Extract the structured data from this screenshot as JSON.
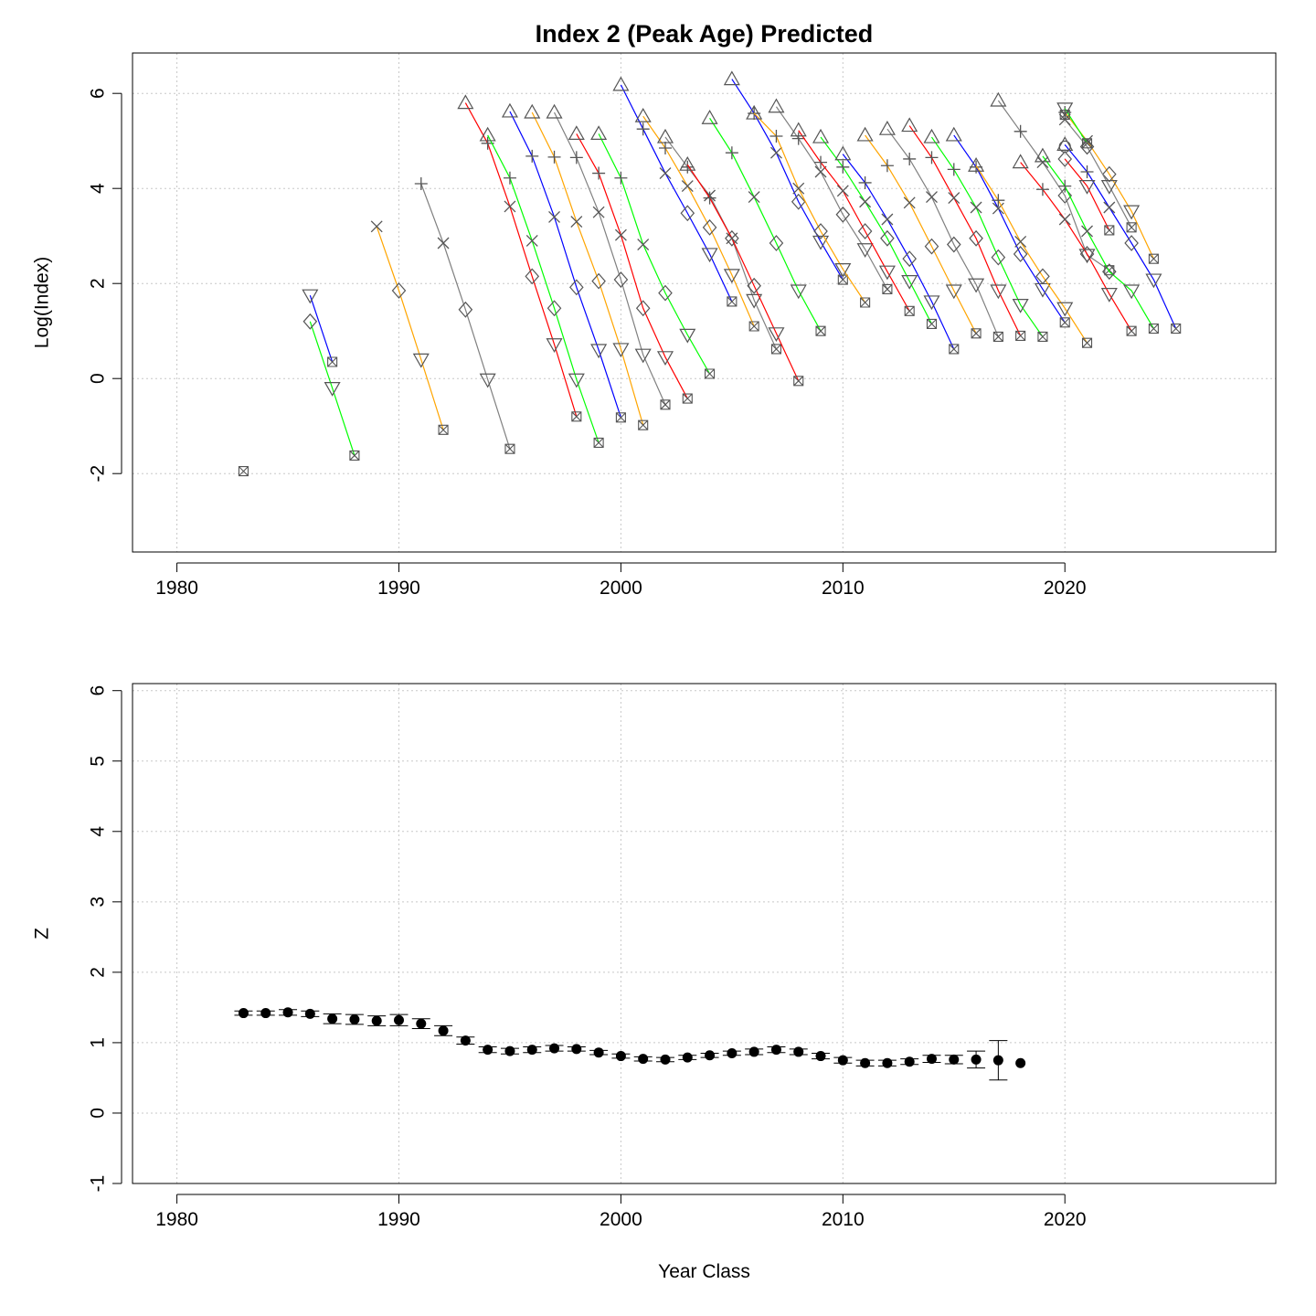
{
  "chart_data": [
    {
      "type": "line",
      "title": "Index 2 (Peak Age) Predicted",
      "xlabel": "",
      "ylabel": "Log(Index)",
      "xlim": [
        1978,
        2029.5
      ],
      "ylim": [
        -3.65,
        6.85
      ],
      "xticks": [
        1980,
        1990,
        2000,
        2010,
        2020
      ],
      "yticks": [
        -2,
        0,
        2,
        4,
        6
      ],
      "ytick_labels": [
        "-2",
        "0",
        "2",
        "4",
        "6"
      ],
      "grid": true,
      "line_colors": [
        "#ff0000",
        "#00ff00",
        "#0000ff",
        "#ffa500",
        "#808080"
      ],
      "age_symbols": [
        "triangle-up",
        "plus",
        "x",
        "diamond",
        "triangle-down",
        "square-x"
      ],
      "start_year": 1988,
      "cohorts": [
        {
          "values": [
            -1.95
          ]
        },
        {
          "values": [
            1.2,
            -0.2,
            -1.62
          ]
        },
        {
          "values": [
            1.75,
            0.35
          ]
        },
        {
          "values": [
            3.2,
            1.85,
            0.4,
            -1.08
          ]
        },
        {
          "values": [
            4.1,
            2.85,
            1.45,
            -0.02,
            -1.48
          ]
        },
        {
          "values": [
            5.8,
            4.95,
            3.62,
            2.15,
            0.72,
            -0.8
          ]
        },
        {
          "values": [
            5.12,
            4.22,
            2.9,
            1.48,
            -0.02,
            -1.35
          ]
        },
        {
          "values": [
            5.62,
            4.68,
            3.4,
            1.92,
            0.6,
            -0.82
          ]
        },
        {
          "values": [
            5.6,
            4.66,
            3.3,
            2.05,
            0.62,
            -0.98
          ]
        },
        {
          "values": [
            5.6,
            4.65,
            3.5,
            2.08,
            0.5,
            -0.55
          ]
        },
        {
          "values": [
            5.15,
            4.32,
            3.02,
            1.48,
            0.45,
            -0.42
          ]
        },
        {
          "values": [
            5.15,
            4.22,
            2.82,
            1.8,
            0.92,
            0.1
          ]
        },
        {
          "values": [
            6.18,
            5.25,
            4.32,
            3.48,
            2.62,
            1.62
          ]
        },
        {
          "values": [
            5.52,
            4.85,
            4.05,
            3.18,
            2.18,
            1.1
          ]
        },
        {
          "values": [
            5.08,
            4.45,
            3.85,
            2.95,
            1.65,
            0.62
          ]
        },
        {
          "values": [
            4.5,
            3.8,
            2.95,
            1.95,
            0.95,
            -0.05
          ]
        },
        {
          "values": [
            5.48,
            4.75,
            3.82,
            2.85,
            1.85,
            1.0
          ]
        },
        {
          "values": [
            6.3,
            5.58,
            4.75,
            3.72,
            2.88,
            2.08
          ]
        },
        {
          "values": [
            5.58,
            5.1,
            4.0,
            3.1,
            2.3,
            1.6
          ]
        },
        {
          "values": [
            5.72,
            5.05,
            4.35,
            3.45,
            2.72,
            1.88
          ]
        },
        {
          "values": [
            5.22,
            4.55,
            3.95,
            3.1,
            2.25,
            1.42
          ]
        },
        {
          "values": [
            5.08,
            4.45,
            3.72,
            2.95,
            2.05,
            1.15
          ]
        },
        {
          "values": [
            4.72,
            4.12,
            3.35,
            2.52,
            1.62,
            0.62
          ]
        },
        {
          "values": [
            5.12,
            4.48,
            3.7,
            2.78,
            1.85,
            0.95
          ]
        },
        {
          "values": [
            5.25,
            4.62,
            3.82,
            2.82,
            1.98,
            0.88
          ]
        },
        {
          "values": [
            5.32,
            4.65,
            3.8,
            2.95,
            1.85,
            0.9
          ]
        },
        {
          "values": [
            5.08,
            4.4,
            3.6,
            2.55,
            1.55,
            0.88
          ]
        },
        {
          "values": [
            5.12,
            4.45,
            3.58,
            2.62,
            1.88,
            1.18
          ]
        },
        {
          "values": [
            4.48,
            3.75,
            2.88,
            2.15,
            1.48,
            0.75
          ]
        },
        {
          "values": [
            5.85,
            5.2,
            4.55,
            3.85,
            2.6,
            2.28
          ]
        },
        {
          "values": [
            4.55,
            3.98,
            3.35,
            2.62,
            1.78,
            1.0
          ]
        },
        {
          "values": [
            4.68,
            4.05,
            3.1,
            2.25,
            1.85,
            1.05
          ]
        },
        {
          "values": [
            4.92,
            4.35,
            3.6,
            2.85,
            2.08,
            1.05
          ]
        },
        {
          "values": [
            5.6,
            5.0,
            4.3,
            3.52,
            2.52
          ]
        },
        {
          "values": [
            5.45,
            4.88,
            4.05,
            3.18
          ]
        },
        {
          "values": [
            4.62,
            4.05,
            3.12
          ]
        },
        {
          "values": [
            5.68,
            4.95
          ]
        },
        {
          "values": [
            5.55
          ]
        }
      ],
      "extra_points": [
        {
          "x": 2020,
          "y": 4.88,
          "symbol": "circle"
        }
      ]
    },
    {
      "type": "scatter",
      "title": "",
      "xlabel": "Year Class",
      "ylabel": "Z",
      "xlim": [
        1978,
        2029.5
      ],
      "ylim": [
        -1,
        6.1
      ],
      "xticks": [
        1980,
        1990,
        2000,
        2010,
        2020
      ],
      "yticks": [
        -1,
        0,
        1,
        2,
        3,
        4,
        5,
        6
      ],
      "ytick_labels": [
        "-1",
        "0",
        "1",
        "2",
        "3",
        "4",
        "5",
        "6"
      ],
      "grid": true,
      "x": [
        1983,
        1984,
        1985,
        1986,
        1987,
        1988,
        1989,
        1990,
        1991,
        1992,
        1993,
        1994,
        1995,
        1996,
        1997,
        1998,
        1999,
        2000,
        2001,
        2002,
        2003,
        2004,
        2005,
        2006,
        2007,
        2008,
        2009,
        2010,
        2011,
        2012,
        2013,
        2014,
        2015,
        2016,
        2017,
        2018
      ],
      "y": [
        1.42,
        1.42,
        1.43,
        1.41,
        1.34,
        1.33,
        1.31,
        1.32,
        1.27,
        1.17,
        1.03,
        0.9,
        0.88,
        0.9,
        0.92,
        0.91,
        0.86,
        0.81,
        0.77,
        0.76,
        0.79,
        0.82,
        0.85,
        0.87,
        0.9,
        0.87,
        0.81,
        0.75,
        0.71,
        0.71,
        0.73,
        0.77,
        0.76,
        0.76,
        0.75,
        0.71
      ],
      "err": [
        0.03,
        0.03,
        0.04,
        0.04,
        0.07,
        0.07,
        0.07,
        0.08,
        0.07,
        0.07,
        0.05,
        0.04,
        0.04,
        0.04,
        0.04,
        0.03,
        0.03,
        0.03,
        0.03,
        0.03,
        0.03,
        0.03,
        0.03,
        0.04,
        0.04,
        0.04,
        0.04,
        0.04,
        0.04,
        0.04,
        0.04,
        0.05,
        0.06,
        0.12,
        0.28,
        0.0
      ]
    }
  ]
}
